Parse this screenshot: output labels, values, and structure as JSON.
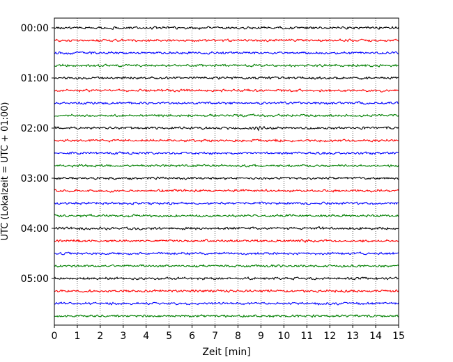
{
  "chart_data": {
    "type": "line",
    "title": "",
    "xlabel": "Zeit  [min]",
    "ylabel": "UTC (Lokalzeit = UTC + 01:00)",
    "xlim": [
      0,
      15
    ],
    "x_ticks": [
      "0",
      "1",
      "2",
      "3",
      "4",
      "5",
      "6",
      "7",
      "8",
      "9",
      "10",
      "11",
      "12",
      "13",
      "14",
      "15"
    ],
    "y_tick_labels": [
      "00:00",
      "01:00",
      "02:00",
      "03:00",
      "04:00",
      "05:00"
    ],
    "grid": "vertical dotted lines at each minute",
    "trace_interval_minutes": 15,
    "trace_colors": [
      "#000000",
      "#ff0000",
      "#0000ff",
      "#008000"
    ],
    "traces": [
      {
        "start": "00:00",
        "color": "#000000"
      },
      {
        "start": "00:15",
        "color": "#ff0000"
      },
      {
        "start": "00:30",
        "color": "#0000ff"
      },
      {
        "start": "00:45",
        "color": "#008000"
      },
      {
        "start": "01:00",
        "color": "#000000"
      },
      {
        "start": "01:15",
        "color": "#ff0000"
      },
      {
        "start": "01:30",
        "color": "#0000ff"
      },
      {
        "start": "01:45",
        "color": "#008000"
      },
      {
        "start": "02:00",
        "color": "#000000"
      },
      {
        "start": "02:15",
        "color": "#ff0000"
      },
      {
        "start": "02:30",
        "color": "#0000ff"
      },
      {
        "start": "02:45",
        "color": "#008000"
      },
      {
        "start": "03:00",
        "color": "#000000"
      },
      {
        "start": "03:15",
        "color": "#ff0000"
      },
      {
        "start": "03:30",
        "color": "#0000ff"
      },
      {
        "start": "03:45",
        "color": "#008000"
      },
      {
        "start": "04:00",
        "color": "#000000"
      },
      {
        "start": "04:15",
        "color": "#ff0000"
      },
      {
        "start": "04:30",
        "color": "#0000ff"
      },
      {
        "start": "04:45",
        "color": "#008000"
      },
      {
        "start": "05:00",
        "color": "#000000"
      },
      {
        "start": "05:15",
        "color": "#ff0000"
      },
      {
        "start": "05:30",
        "color": "#0000ff"
      },
      {
        "start": "05:45",
        "color": "#008000"
      }
    ]
  }
}
